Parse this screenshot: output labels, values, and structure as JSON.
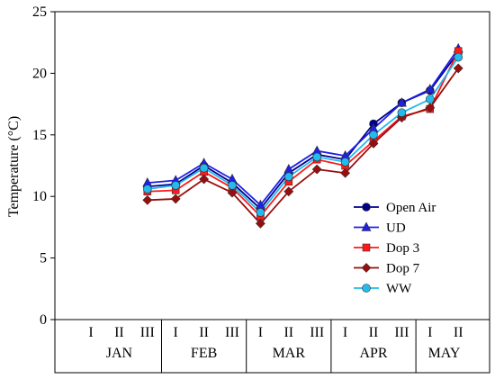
{
  "chart_data": {
    "type": "line",
    "ylabel": "Temperature (°C)",
    "xlabel": "",
    "ylim": [
      0,
      25
    ],
    "yticks": [
      0,
      5,
      10,
      15,
      20,
      25
    ],
    "x": [
      "JAN I",
      "JAN II",
      "JAN III",
      "FEB I",
      "FEB II",
      "FEB III",
      "MAR I",
      "MAR II",
      "MAR III",
      "APR I",
      "APR II",
      "APR III",
      "MAY I",
      "MAY II"
    ],
    "x_ticks": [
      "I",
      "II",
      "III",
      "I",
      "II",
      "III",
      "I",
      "II",
      "III",
      "I",
      "II",
      "III",
      "I",
      "II"
    ],
    "months": [
      {
        "label": "JAN",
        "start": 0,
        "end": 2
      },
      {
        "label": "FEB",
        "start": 3,
        "end": 5
      },
      {
        "label": "MAR",
        "start": 6,
        "end": 8
      },
      {
        "label": "APR",
        "start": 9,
        "end": 11
      },
      {
        "label": "MAY",
        "start": 12,
        "end": 13
      }
    ],
    "legend_position": "bottom-right",
    "grid": false,
    "series": [
      {
        "name": "Open Air",
        "color": "#00008b",
        "marker": "circle",
        "values": [
          null,
          null,
          10.8,
          11.0,
          12.5,
          11.1,
          9.0,
          11.9,
          13.4,
          13.0,
          15.9,
          17.6,
          18.6,
          21.7
        ]
      },
      {
        "name": "UD",
        "color": "#1f1fe6",
        "marker": "triangle",
        "values": [
          null,
          null,
          11.1,
          11.3,
          12.7,
          11.4,
          9.3,
          12.2,
          13.7,
          13.3,
          15.5,
          17.6,
          18.7,
          22.0
        ]
      },
      {
        "name": "Dop 3",
        "color": "#ff1a1a",
        "marker": "square",
        "values": [
          null,
          null,
          10.4,
          10.5,
          12.0,
          10.7,
          8.4,
          11.2,
          13.0,
          12.5,
          14.5,
          16.5,
          17.1,
          21.8
        ]
      },
      {
        "name": "Dop 7",
        "color": "#9b0d0d",
        "marker": "diamond",
        "values": [
          null,
          null,
          9.7,
          9.8,
          11.4,
          10.3,
          7.8,
          10.4,
          12.2,
          11.9,
          14.3,
          16.4,
          17.2,
          20.4
        ]
      },
      {
        "name": "WW",
        "color": "#22bbee",
        "marker": "circle",
        "values": [
          null,
          null,
          10.6,
          10.9,
          12.3,
          10.9,
          8.7,
          11.6,
          13.2,
          12.8,
          15.0,
          16.8,
          17.9,
          21.3
        ]
      }
    ]
  }
}
